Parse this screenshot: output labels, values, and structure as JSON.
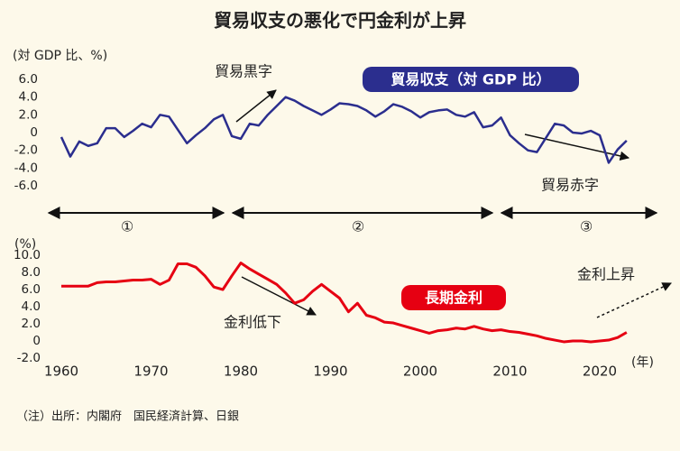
{
  "title": "貿易収支の悪化で円金利が上昇",
  "periods": [
    "①",
    "②",
    "③"
  ],
  "note": "（注）出所：内閣府　国民経済計算、日銀",
  "chart_data": [
    {
      "type": "line",
      "y_label": "(対 GDP 比、%)",
      "x": [
        1960,
        1961,
        1962,
        1963,
        1964,
        1965,
        1966,
        1967,
        1968,
        1969,
        1970,
        1971,
        1972,
        1973,
        1974,
        1975,
        1976,
        1977,
        1978,
        1979,
        1980,
        1981,
        1982,
        1983,
        1984,
        1985,
        1986,
        1987,
        1988,
        1989,
        1990,
        1991,
        1992,
        1993,
        1994,
        1995,
        1996,
        1997,
        1998,
        1999,
        2000,
        2001,
        2002,
        2003,
        2004,
        2005,
        2006,
        2007,
        2008,
        2009,
        2010,
        2011,
        2012,
        2013,
        2014,
        2015,
        2016,
        2017,
        2018,
        2019,
        2020,
        2021,
        2022,
        2023
      ],
      "series": [
        {
          "name": "貿易収支（対 GDP 比）",
          "color": "#2b2e8e",
          "values": [
            -0.5,
            -2.7,
            -1.0,
            -1.5,
            -1.2,
            0.5,
            0.5,
            -0.5,
            0.2,
            1.0,
            0.6,
            2.0,
            1.8,
            0.3,
            -1.2,
            -0.3,
            0.5,
            1.5,
            2.0,
            -0.4,
            -0.7,
            1.0,
            0.8,
            2.0,
            3.0,
            4.0,
            3.6,
            3.0,
            2.5,
            2.0,
            2.6,
            3.3,
            3.2,
            3.0,
            2.5,
            1.8,
            2.4,
            3.2,
            2.9,
            2.4,
            1.7,
            2.3,
            2.5,
            2.6,
            2.0,
            1.8,
            2.3,
            0.6,
            0.8,
            1.7,
            -0.3,
            -1.2,
            -2.0,
            -2.2,
            -0.6,
            1.0,
            0.8,
            0.0,
            -0.1,
            0.2,
            -0.3,
            -3.4,
            -1.9,
            -0.9
          ]
        }
      ],
      "xlim": [
        1960,
        2025
      ],
      "ylim": [
        -6,
        6
      ],
      "yticks": [
        {
          "value": 6,
          "label": "6.0"
        },
        {
          "value": 4,
          "label": "4.0"
        },
        {
          "value": 2,
          "label": "2.0"
        },
        0,
        {
          "value": -2,
          "label": "-2.0"
        },
        {
          "value": -4,
          "label": "-4.0"
        },
        {
          "value": -6,
          "label": "-6.0"
        }
      ],
      "annotations": [
        "貿易黒字",
        "貿易赤字"
      ]
    },
    {
      "type": "line",
      "y_label": "(%)",
      "x_label": "(年)",
      "x": [
        1960,
        1961,
        1962,
        1963,
        1964,
        1965,
        1966,
        1967,
        1968,
        1969,
        1970,
        1971,
        1972,
        1973,
        1974,
        1975,
        1976,
        1977,
        1978,
        1979,
        1980,
        1981,
        1982,
        1983,
        1984,
        1985,
        1986,
        1987,
        1988,
        1989,
        1990,
        1991,
        1992,
        1993,
        1994,
        1995,
        1996,
        1997,
        1998,
        1999,
        2000,
        2001,
        2002,
        2003,
        2004,
        2005,
        2006,
        2007,
        2008,
        2009,
        2010,
        2011,
        2012,
        2013,
        2014,
        2015,
        2016,
        2017,
        2018,
        2019,
        2020,
        2021,
        2022,
        2023
      ],
      "series": [
        {
          "name": "長期金利",
          "color": "#e60012",
          "values": [
            6.4,
            6.4,
            6.4,
            6.4,
            6.8,
            6.9,
            6.9,
            7.0,
            7.1,
            7.1,
            7.2,
            6.6,
            7.1,
            9.0,
            9.0,
            8.6,
            7.6,
            6.3,
            6.0,
            7.6,
            9.1,
            8.4,
            7.8,
            7.2,
            6.6,
            5.6,
            4.4,
            4.8,
            5.8,
            6.6,
            5.8,
            5.0,
            3.4,
            4.4,
            3.0,
            2.7,
            2.2,
            2.1,
            1.8,
            1.5,
            1.2,
            0.9,
            1.2,
            1.3,
            1.5,
            1.4,
            1.7,
            1.4,
            1.2,
            1.3,
            1.1,
            1.0,
            0.8,
            0.6,
            0.3,
            0.1,
            -0.1,
            0.0,
            0.0,
            -0.1,
            0.0,
            0.1,
            0.4,
            1.0
          ]
        }
      ],
      "xlim": [
        1960,
        2025
      ],
      "ylim": [
        -2,
        10
      ],
      "xticks": [
        1960,
        1970,
        1980,
        1990,
        2000,
        2010,
        2020
      ],
      "yticks": [
        {
          "value": 10,
          "label": "10.0"
        },
        {
          "value": 8,
          "label": "8.0"
        },
        {
          "value": 6,
          "label": "6.0"
        },
        {
          "value": 4,
          "label": "4.0"
        },
        {
          "value": 2,
          "label": "2.0"
        },
        0,
        {
          "value": -2,
          "label": "-2.0"
        }
      ],
      "annotations": [
        "金利低下",
        "金利上昇"
      ]
    }
  ]
}
